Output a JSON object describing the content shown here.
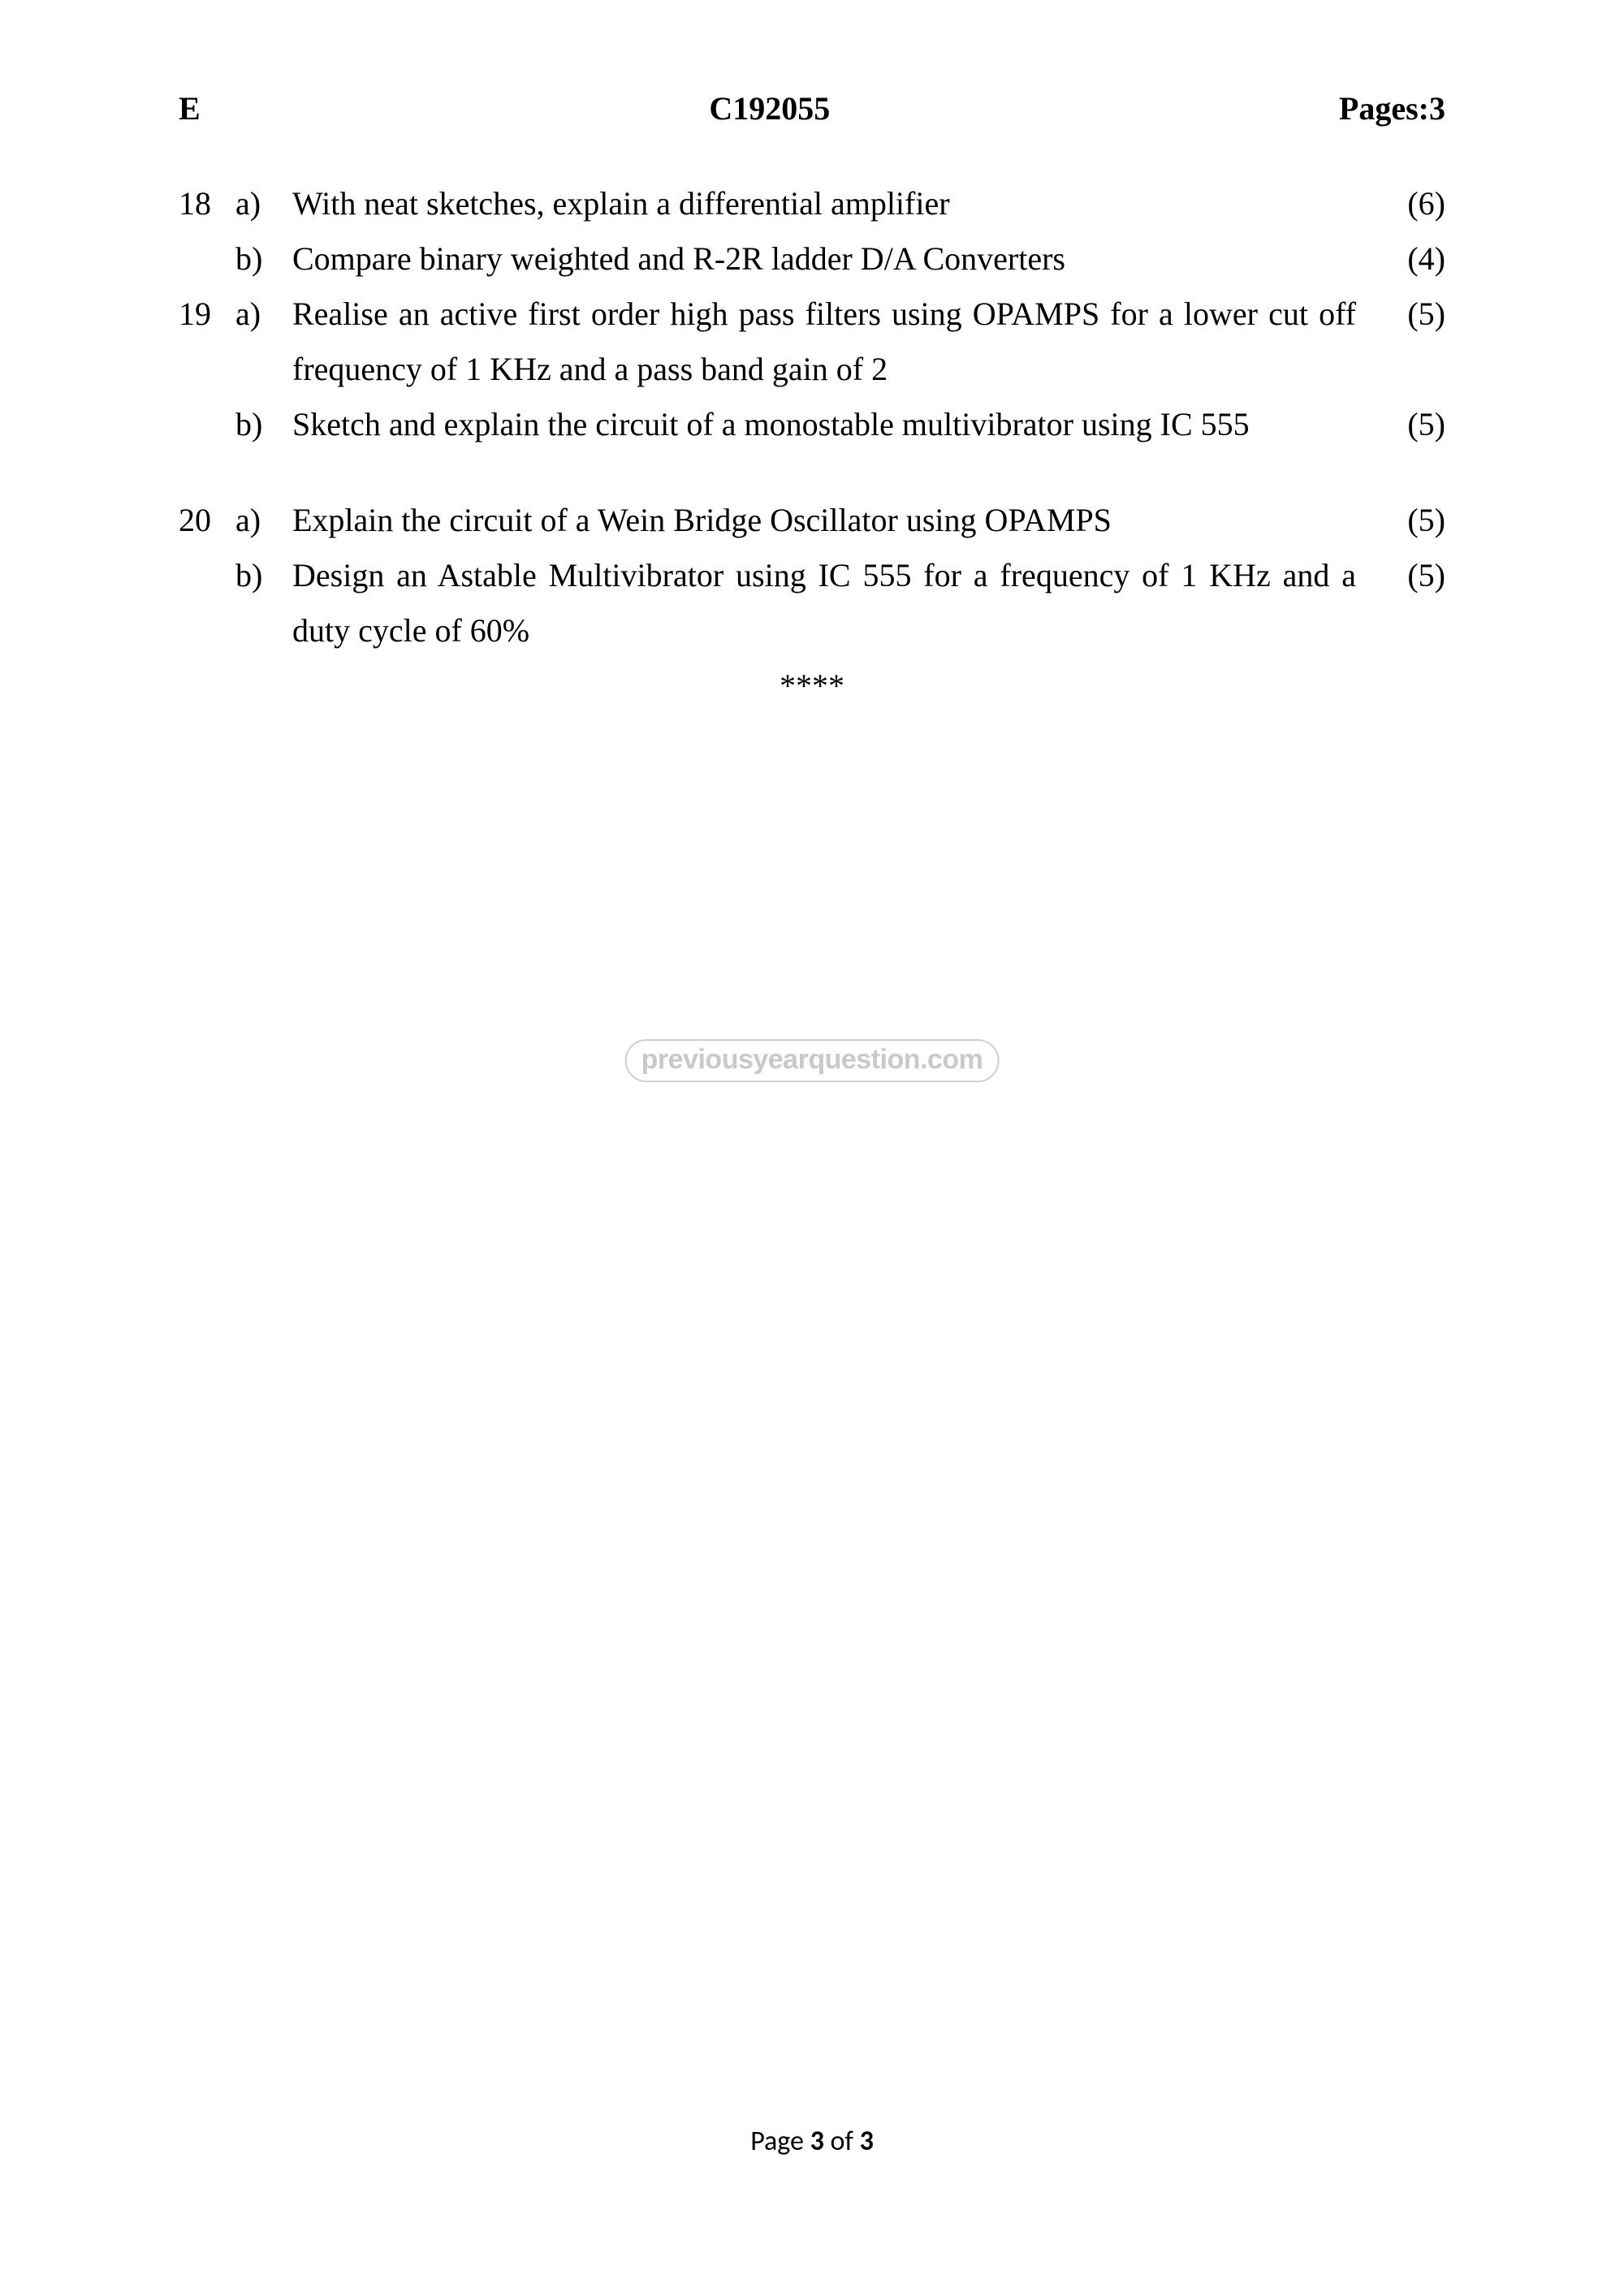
{
  "header": {
    "left": "E",
    "center": "C192055",
    "right": "Pages:3"
  },
  "questions": [
    {
      "num": "18",
      "part": "a)",
      "text": "With neat sketches, explain a differential amplifier",
      "marks": "(6)"
    },
    {
      "num": "",
      "part": "b)",
      "text": "Compare binary weighted and R-2R ladder D/A Converters",
      "marks": "(4)"
    },
    {
      "num": "19",
      "part": "a)",
      "text": "Realise an active first order high pass filters using OPAMPS for a lower cut off frequency of 1 KHz and a pass band gain of 2",
      "marks": "(5)"
    },
    {
      "num": "",
      "part": "b)",
      "text": "Sketch and explain the circuit of a monostable multivibrator using IC 555",
      "marks": "(5)"
    },
    {
      "spacer": true
    },
    {
      "num": "20",
      "part": "a)",
      "text": "Explain the circuit of a Wein Bridge Oscillator using OPAMPS",
      "marks": "(5)"
    },
    {
      "num": "",
      "part": "b)",
      "text": "Design an Astable Multivibrator using IC 555 for a frequency of 1 KHz and a duty cycle of 60%",
      "marks": "(5)"
    }
  ],
  "end_marker": "****",
  "watermark": "previousyearquestion.com",
  "footer": {
    "prefix": "Page ",
    "current": "3",
    "sep": " of ",
    "total": "3"
  }
}
